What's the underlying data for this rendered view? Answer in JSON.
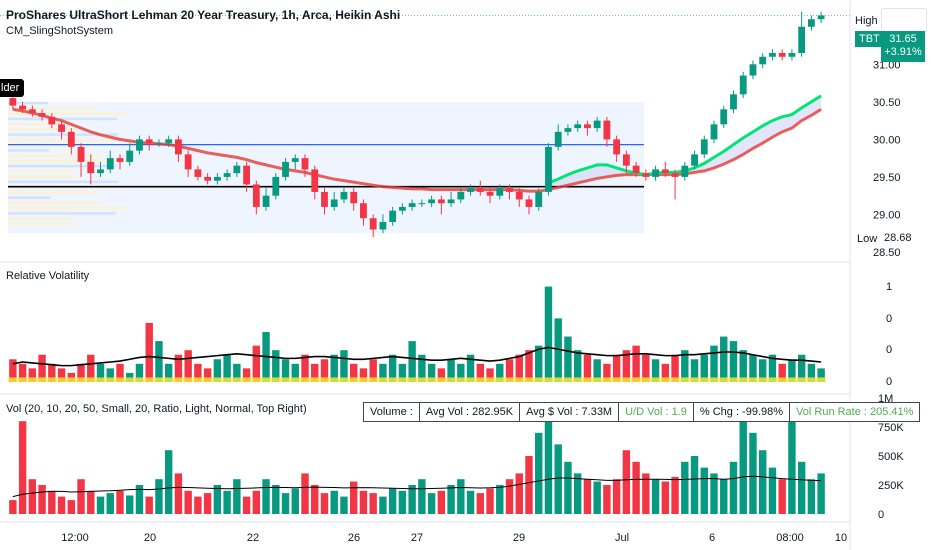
{
  "header": {
    "title": "ProShares UltraShort Lehman 20 Year Treasury, 1h, Arca, Heikin Ashi",
    "indicator": "CM_SlingShotSystem",
    "side_tag": "lder"
  },
  "price_pane": {
    "high_label": "High",
    "symbol": "TBT",
    "last_price": "31.65",
    "change_pct": "+3.91%",
    "low_label": "Low",
    "low_value": "28.68",
    "y_ticks": [
      "31.00",
      "30.50",
      "30.00",
      "29.50",
      "29.00",
      "28.50"
    ]
  },
  "volatility_pane": {
    "label": "Relative Volatility",
    "y_ticks": [
      "1",
      "0",
      "0",
      "0"
    ]
  },
  "volume_pane": {
    "label": "Vol (20, 10, 20, 50, Small, 20, Ratio, Light, Normal, Top Right)",
    "y_ticks": [
      "1M",
      "750K",
      "500K",
      "250K",
      "0"
    ],
    "stats": {
      "volume": "Volume :",
      "avg_vol": "Avg Vol : 282.95K",
      "avg_dollar_vol": "Avg $ Vol : 7.33M",
      "ud_vol": "U/D Vol : 1.9",
      "pct_chg": "% Chg : -99.98%",
      "vol_run_rate": "Vol Run Rate : 205.41%"
    }
  },
  "x_axis": {
    "ticks": [
      "12:00",
      "20",
      "22",
      "26",
      "27",
      "29",
      "Jul",
      "6",
      "08:00",
      "10"
    ]
  },
  "colors": {
    "up": "#089981",
    "down": "#f23645",
    "fast_ema": "#00e676",
    "slow_ema": "#e53935",
    "cloud": "#d1d4f7",
    "blue_line": "#2962ff",
    "black_line": "#000000",
    "vol_avg": "#000000",
    "volatility_yellow": "#ffeb3b"
  },
  "chart_data": {
    "type": "candlestick",
    "price_range": [
      28.5,
      31.35
    ],
    "horizontal_levels": [
      29.93,
      29.37
    ],
    "candles": [
      [
        30.55,
        30.45,
        30.6,
        30.4
      ],
      [
        30.45,
        30.4,
        30.5,
        30.35
      ],
      [
        30.4,
        30.35,
        30.45,
        30.3
      ],
      [
        30.35,
        30.3,
        30.4,
        30.25
      ],
      [
        30.3,
        30.2,
        30.35,
        30.15
      ],
      [
        30.2,
        30.1,
        30.25,
        30.0
      ],
      [
        30.1,
        29.9,
        30.15,
        29.8
      ],
      [
        29.9,
        29.7,
        29.95,
        29.5
      ],
      [
        29.7,
        29.55,
        29.8,
        29.4
      ],
      [
        29.55,
        29.6,
        29.7,
        29.5
      ],
      [
        29.6,
        29.75,
        29.85,
        29.55
      ],
      [
        29.75,
        29.7,
        29.8,
        29.6
      ],
      [
        29.7,
        29.85,
        29.95,
        29.65
      ],
      [
        29.85,
        30.0,
        30.05,
        29.8
      ],
      [
        30.0,
        29.95,
        30.05,
        29.85
      ],
      [
        29.95,
        29.95,
        30.0,
        29.9
      ],
      [
        29.95,
        30.0,
        30.05,
        29.9
      ],
      [
        30.0,
        29.8,
        30.05,
        29.7
      ],
      [
        29.8,
        29.6,
        29.85,
        29.5
      ],
      [
        29.6,
        29.5,
        29.65,
        29.45
      ],
      [
        29.5,
        29.45,
        29.55,
        29.4
      ],
      [
        29.45,
        29.5,
        29.55,
        29.4
      ],
      [
        29.5,
        29.55,
        29.6,
        29.45
      ],
      [
        29.55,
        29.65,
        29.7,
        29.5
      ],
      [
        29.65,
        29.4,
        29.7,
        29.3
      ],
      [
        29.4,
        29.1,
        29.45,
        29.0
      ],
      [
        29.1,
        29.25,
        29.35,
        29.05
      ],
      [
        29.25,
        29.5,
        29.55,
        29.2
      ],
      [
        29.5,
        29.7,
        29.75,
        29.45
      ],
      [
        29.7,
        29.75,
        29.8,
        29.6
      ],
      [
        29.75,
        29.6,
        29.8,
        29.5
      ],
      [
        29.6,
        29.3,
        29.65,
        29.2
      ],
      [
        29.3,
        29.1,
        29.35,
        29.0
      ],
      [
        29.1,
        29.2,
        29.3,
        29.05
      ],
      [
        29.2,
        29.3,
        29.35,
        29.15
      ],
      [
        29.3,
        29.15,
        29.35,
        29.05
      ],
      [
        29.15,
        28.95,
        29.2,
        28.85
      ],
      [
        28.95,
        28.8,
        29.0,
        28.7
      ],
      [
        28.8,
        28.9,
        29.0,
        28.75
      ],
      [
        28.9,
        29.05,
        29.1,
        28.85
      ],
      [
        29.05,
        29.1,
        29.15,
        29.0
      ],
      [
        29.1,
        29.15,
        29.2,
        29.05
      ],
      [
        29.15,
        29.15,
        29.2,
        29.1
      ],
      [
        29.15,
        29.2,
        29.25,
        29.1
      ],
      [
        29.2,
        29.15,
        29.25,
        29.0
      ],
      [
        29.15,
        29.2,
        29.3,
        29.1
      ],
      [
        29.2,
        29.3,
        29.35,
        29.15
      ],
      [
        29.3,
        29.35,
        29.4,
        29.25
      ],
      [
        29.35,
        29.3,
        29.45,
        29.25
      ],
      [
        29.3,
        29.25,
        29.35,
        29.15
      ],
      [
        29.25,
        29.35,
        29.4,
        29.2
      ],
      [
        29.35,
        29.3,
        29.4,
        29.2
      ],
      [
        29.3,
        29.2,
        29.35,
        29.1
      ],
      [
        29.2,
        29.1,
        29.25,
        29.0
      ],
      [
        29.1,
        29.3,
        29.35,
        29.05
      ],
      [
        29.3,
        29.9,
        29.95,
        29.25
      ],
      [
        29.9,
        30.1,
        30.2,
        29.85
      ],
      [
        30.1,
        30.15,
        30.2,
        30.05
      ],
      [
        30.15,
        30.2,
        30.25,
        30.1
      ],
      [
        30.2,
        30.15,
        30.25,
        30.05
      ],
      [
        30.15,
        30.25,
        30.3,
        30.1
      ],
      [
        30.25,
        30.0,
        30.3,
        29.9
      ],
      [
        30.0,
        29.8,
        30.05,
        29.7
      ],
      [
        29.8,
        29.65,
        29.85,
        29.55
      ],
      [
        29.65,
        29.55,
        29.7,
        29.5
      ],
      [
        29.55,
        29.5,
        29.6,
        29.45
      ],
      [
        29.5,
        29.6,
        29.65,
        29.45
      ],
      [
        29.6,
        29.55,
        29.7,
        29.5
      ],
      [
        29.55,
        29.5,
        29.6,
        29.2
      ],
      [
        29.5,
        29.65,
        29.7,
        29.45
      ],
      [
        29.65,
        29.8,
        29.85,
        29.6
      ],
      [
        29.8,
        30.0,
        30.05,
        29.75
      ],
      [
        30.0,
        30.2,
        30.25,
        29.95
      ],
      [
        30.2,
        30.4,
        30.45,
        30.15
      ],
      [
        30.4,
        30.6,
        30.65,
        30.35
      ],
      [
        30.6,
        30.85,
        30.9,
        30.55
      ],
      [
        30.85,
        31.0,
        31.05,
        30.8
      ],
      [
        31.0,
        31.1,
        31.15,
        30.95
      ],
      [
        31.1,
        31.15,
        31.2,
        31.05
      ],
      [
        31.15,
        31.1,
        31.2,
        31.05
      ],
      [
        31.1,
        31.15,
        31.2,
        31.05
      ],
      [
        31.15,
        31.5,
        31.7,
        31.1
      ],
      [
        31.5,
        31.6,
        31.65,
        31.45
      ],
      [
        31.6,
        31.65,
        31.7,
        31.55
      ]
    ],
    "fast_ema": [
      null,
      null,
      null,
      null,
      null,
      null,
      null,
      null,
      null,
      null,
      null,
      null,
      null,
      null,
      null,
      null,
      null,
      null,
      null,
      null,
      null,
      null,
      null,
      null,
      null,
      null,
      null,
      null,
      null,
      null,
      null,
      null,
      null,
      null,
      null,
      null,
      null,
      null,
      null,
      null,
      null,
      null,
      null,
      null,
      null,
      null,
      null,
      null,
      null,
      null,
      null,
      null,
      null,
      null,
      null,
      29.42,
      29.47,
      29.53,
      29.58,
      29.62,
      29.66,
      29.66,
      29.62,
      29.58,
      29.55,
      29.53,
      29.55,
      29.56,
      29.56,
      29.58,
      29.62,
      29.68,
      29.76,
      29.84,
      29.93,
      30.02,
      30.1,
      30.18,
      30.25,
      30.3,
      30.33,
      30.42,
      30.5,
      30.58
    ],
    "slow_ema": [
      30.4,
      30.38,
      30.35,
      30.32,
      30.28,
      30.25,
      30.2,
      30.15,
      30.1,
      30.06,
      30.03,
      30.0,
      29.98,
      29.96,
      29.95,
      29.94,
      29.93,
      29.91,
      29.88,
      29.85,
      29.82,
      29.8,
      29.78,
      29.76,
      29.73,
      29.69,
      29.66,
      29.63,
      29.6,
      29.58,
      29.56,
      29.53,
      29.5,
      29.47,
      29.45,
      29.43,
      29.41,
      29.39,
      29.37,
      29.36,
      29.35,
      29.34,
      29.34,
      29.33,
      29.33,
      29.33,
      29.33,
      29.33,
      29.33,
      29.33,
      29.33,
      29.33,
      29.32,
      29.31,
      29.31,
      29.33,
      29.36,
      29.39,
      29.42,
      29.45,
      29.48,
      29.5,
      29.52,
      29.53,
      29.53,
      29.53,
      29.53,
      29.53,
      29.53,
      29.54,
      29.56,
      29.58,
      29.62,
      29.67,
      29.73,
      29.8,
      29.88,
      29.95,
      30.03,
      30.1,
      30.15,
      30.25,
      30.32,
      30.4
    ],
    "volatility": [
      0.25,
      0.2,
      0.15,
      0.3,
      0.2,
      0.15,
      0.1,
      0.2,
      0.3,
      0.2,
      0.15,
      0.2,
      0.1,
      0.2,
      0.65,
      0.45,
      0.2,
      0.3,
      0.35,
      0.2,
      0.15,
      0.25,
      0.3,
      0.2,
      0.15,
      0.4,
      0.55,
      0.35,
      0.25,
      0.2,
      0.3,
      0.2,
      0.25,
      0.3,
      0.35,
      0.2,
      0.15,
      0.25,
      0.2,
      0.3,
      0.2,
      0.45,
      0.3,
      0.2,
      0.15,
      0.25,
      0.2,
      0.3,
      0.2,
      0.15,
      0.2,
      0.25,
      0.3,
      0.35,
      0.4,
      1.05,
      0.7,
      0.5,
      0.35,
      0.3,
      0.25,
      0.2,
      0.3,
      0.35,
      0.4,
      0.3,
      0.25,
      0.2,
      0.3,
      0.35,
      0.25,
      0.3,
      0.4,
      0.5,
      0.45,
      0.35,
      0.3,
      0.25,
      0.3,
      0.2,
      0.25,
      0.3,
      0.2,
      0.15
    ],
    "volatility_avg": [
      0.2,
      0.22,
      0.21,
      0.2,
      0.19,
      0.18,
      0.18,
      0.19,
      0.2,
      0.21,
      0.22,
      0.23,
      0.25,
      0.27,
      0.28,
      0.27,
      0.26,
      0.25,
      0.26,
      0.27,
      0.28,
      0.29,
      0.3,
      0.31,
      0.3,
      0.29,
      0.28,
      0.27,
      0.26,
      0.26,
      0.27,
      0.28,
      0.28,
      0.27,
      0.26,
      0.25,
      0.25,
      0.26,
      0.27,
      0.28,
      0.27,
      0.26,
      0.25,
      0.24,
      0.24,
      0.25,
      0.26,
      0.25,
      0.24,
      0.23,
      0.24,
      0.26,
      0.28,
      0.32,
      0.36,
      0.38,
      0.36,
      0.34,
      0.32,
      0.31,
      0.3,
      0.29,
      0.29,
      0.3,
      0.31,
      0.31,
      0.3,
      0.29,
      0.29,
      0.3,
      0.3,
      0.31,
      0.32,
      0.33,
      0.33,
      0.32,
      0.3,
      0.28,
      0.26,
      0.25,
      0.24,
      0.24,
      0.23,
      0.22
    ],
    "volume": [
      120,
      800,
      300,
      250,
      200,
      150,
      120,
      300,
      200,
      150,
      180,
      200,
      160,
      250,
      150,
      300,
      550,
      350,
      200,
      150,
      180,
      250,
      200,
      300,
      150,
      200,
      300,
      250,
      180,
      220,
      350,
      250,
      180,
      200,
      150,
      280,
      200,
      180,
      150,
      220,
      200,
      250,
      300,
      180,
      200,
      250,
      300,
      200,
      180,
      220,
      250,
      300,
      350,
      500,
      700,
      850,
      600,
      450,
      350,
      300,
      280,
      250,
      300,
      550,
      450,
      350,
      300,
      280,
      320,
      450,
      500,
      400,
      350,
      300,
      450,
      950,
      700,
      550,
      400,
      300,
      800,
      450,
      300,
      350
    ],
    "volume_avg": [
      150,
      170,
      180,
      190,
      195,
      195,
      190,
      192,
      195,
      198,
      200,
      205,
      210,
      212,
      210,
      215,
      225,
      230,
      228,
      225,
      222,
      220,
      218,
      220,
      222,
      225,
      228,
      230,
      228,
      226,
      230,
      232,
      230,
      228,
      225,
      226,
      227,
      226,
      224,
      222,
      220,
      218,
      218,
      220,
      222,
      225,
      228,
      226,
      224,
      226,
      230,
      240,
      255,
      270,
      285,
      300,
      310,
      310,
      305,
      300,
      295,
      290,
      290,
      295,
      298,
      300,
      300,
      298,
      296,
      298,
      302,
      305,
      305,
      300,
      305,
      320,
      325,
      320,
      312,
      305,
      300,
      295,
      290,
      288
    ]
  }
}
